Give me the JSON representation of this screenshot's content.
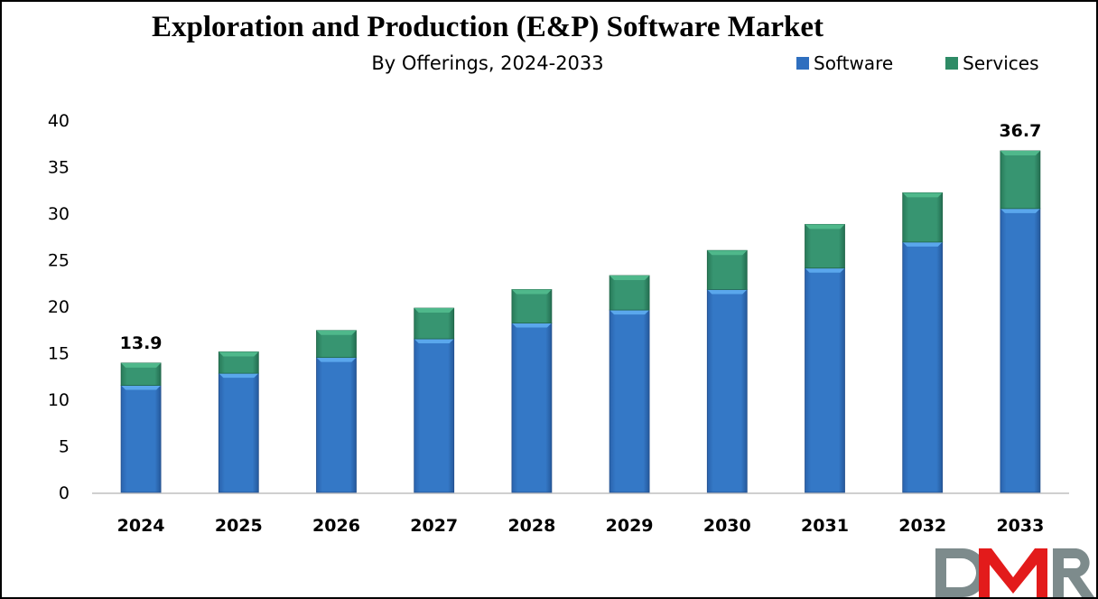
{
  "chart_data": {
    "type": "bar",
    "stacked": true,
    "title": "Exploration and Production (E&P) Software Market",
    "subtitle": "By Offerings, 2024-2033",
    "xlabel": "",
    "ylabel": "",
    "ylim": [
      0,
      40
    ],
    "yticks": [
      0,
      5,
      10,
      15,
      20,
      25,
      30,
      35,
      40
    ],
    "grid": false,
    "legend_position": "top-right",
    "categories": [
      "2024",
      "2025",
      "2026",
      "2027",
      "2028",
      "2029",
      "2030",
      "2031",
      "2032",
      "2033"
    ],
    "series": [
      {
        "name": "Software",
        "color": "#2f6fbf",
        "values": [
          11.5,
          12.8,
          14.5,
          16.5,
          18.2,
          19.6,
          21.8,
          24.1,
          26.9,
          30.5
        ]
      },
      {
        "name": "Services",
        "color": "#2e8b66",
        "values": [
          2.4,
          2.3,
          2.9,
          3.3,
          3.6,
          3.7,
          4.2,
          4.7,
          5.3,
          6.2
        ]
      }
    ],
    "annotations": [
      {
        "category": "2024",
        "text": "13.9"
      },
      {
        "category": "2033",
        "text": "36.7"
      }
    ]
  },
  "legend": {
    "items": [
      {
        "label": "Software",
        "color": "#2f6fbf"
      },
      {
        "label": "Services",
        "color": "#2e8b66"
      }
    ]
  },
  "logo": {
    "text_d": "D",
    "text_m": "M",
    "text_r": "R",
    "gray": "#7d8b8c",
    "red": "#e31b1b"
  }
}
